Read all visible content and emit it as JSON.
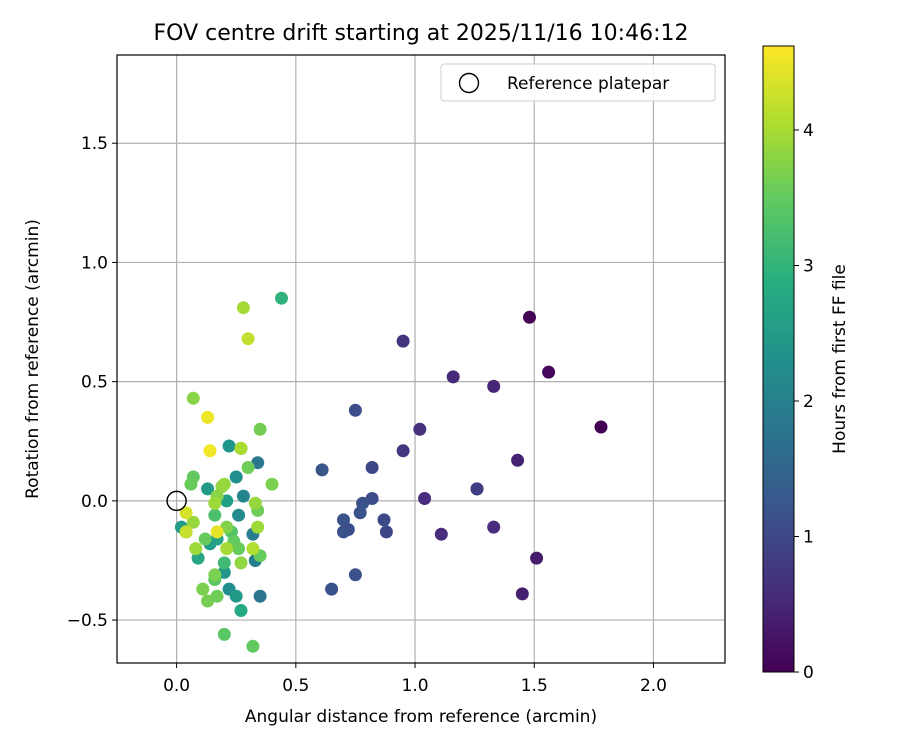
{
  "chart_data": {
    "type": "scatter",
    "title": "FOV centre drift starting at 2025/11/16 10:46:12",
    "xlabel": "Angular distance from reference (arcmin)",
    "ylabel": "Rotation from reference (arcmin)",
    "xlim": [
      -0.25,
      2.3
    ],
    "ylim": [
      -0.68,
      1.87
    ],
    "xticks": [
      0.0,
      0.5,
      1.0,
      1.5,
      2.0
    ],
    "xtick_labels": [
      "0.0",
      "0.5",
      "1.0",
      "1.5",
      "2.0"
    ],
    "yticks": [
      -0.5,
      0.0,
      0.5,
      1.0,
      1.5
    ],
    "ytick_labels": [
      "−0.5",
      "0.0",
      "0.5",
      "1.0",
      "1.5"
    ],
    "grid": true,
    "legend": {
      "location": "top-right",
      "label": "Reference platepar"
    },
    "reference_point": {
      "x": 0.0,
      "y": 0.0
    },
    "colorbar": {
      "label": "Hours from first FF file",
      "min": 0,
      "max": 4.62,
      "colormap": "viridis",
      "ticks": [
        0,
        1,
        2,
        3,
        4
      ],
      "tick_labels": [
        "0",
        "1",
        "2",
        "3",
        "4"
      ]
    },
    "points": [
      {
        "x": 1.78,
        "y": 0.31,
        "t": 0.02
      },
      {
        "x": 1.48,
        "y": 0.77,
        "t": 0.05
      },
      {
        "x": 1.56,
        "y": 0.54,
        "t": 0.1
      },
      {
        "x": 1.51,
        "y": -0.24,
        "t": 0.35
      },
      {
        "x": 1.45,
        "y": -0.39,
        "t": 0.4
      },
      {
        "x": 1.43,
        "y": 0.17,
        "t": 0.45
      },
      {
        "x": 1.33,
        "y": 0.48,
        "t": 0.5
      },
      {
        "x": 1.33,
        "y": -0.11,
        "t": 0.6
      },
      {
        "x": 1.16,
        "y": 0.52,
        "t": 0.55
      },
      {
        "x": 1.11,
        "y": -0.14,
        "t": 0.6
      },
      {
        "x": 1.04,
        "y": 0.01,
        "t": 0.6
      },
      {
        "x": 1.02,
        "y": 0.3,
        "t": 0.65
      },
      {
        "x": 0.95,
        "y": 0.67,
        "t": 0.7
      },
      {
        "x": 0.95,
        "y": 0.21,
        "t": 0.75
      },
      {
        "x": 1.26,
        "y": 0.05,
        "t": 0.8
      },
      {
        "x": 1.26,
        "y": 0.05,
        "t": 0.85
      },
      {
        "x": 0.88,
        "y": -0.13,
        "t": 1.0
      },
      {
        "x": 0.87,
        "y": -0.08,
        "t": 1.05
      },
      {
        "x": 0.82,
        "y": 0.14,
        "t": 1.0
      },
      {
        "x": 0.82,
        "y": 0.01,
        "t": 1.1
      },
      {
        "x": 0.78,
        "y": -0.01,
        "t": 1.15
      },
      {
        "x": 0.77,
        "y": -0.05,
        "t": 1.2
      },
      {
        "x": 0.75,
        "y": 0.38,
        "t": 1.1
      },
      {
        "x": 0.75,
        "y": -0.31,
        "t": 1.15
      },
      {
        "x": 0.72,
        "y": -0.12,
        "t": 1.1
      },
      {
        "x": 0.7,
        "y": -0.08,
        "t": 1.2
      },
      {
        "x": 0.7,
        "y": -0.13,
        "t": 1.15
      },
      {
        "x": 0.65,
        "y": -0.37,
        "t": 1.2
      },
      {
        "x": 0.61,
        "y": 0.13,
        "t": 1.25
      },
      {
        "x": 0.35,
        "y": -0.4,
        "t": 1.8
      },
      {
        "x": 0.34,
        "y": 0.16,
        "t": 1.85
      },
      {
        "x": 0.32,
        "y": -0.14,
        "t": 1.95
      },
      {
        "x": 0.33,
        "y": -0.25,
        "t": 2.0
      },
      {
        "x": 0.28,
        "y": 0.02,
        "t": 2.1
      },
      {
        "x": 0.26,
        "y": -0.06,
        "t": 2.2
      },
      {
        "x": 0.25,
        "y": 0.1,
        "t": 2.3
      },
      {
        "x": 0.22,
        "y": 0.23,
        "t": 2.4
      },
      {
        "x": 0.22,
        "y": -0.37,
        "t": 2.3
      },
      {
        "x": 0.25,
        "y": -0.4,
        "t": 2.5
      },
      {
        "x": 0.2,
        "y": -0.3,
        "t": 2.45
      },
      {
        "x": 0.21,
        "y": 0.0,
        "t": 2.6
      },
      {
        "x": 0.27,
        "y": -0.46,
        "t": 2.8
      },
      {
        "x": 0.17,
        "y": -0.16,
        "t": 2.7
      },
      {
        "x": 0.13,
        "y": 0.05,
        "t": 2.5
      },
      {
        "x": 0.14,
        "y": -0.18,
        "t": 2.55
      },
      {
        "x": 0.04,
        "y": -0.13,
        "t": 2.6
      },
      {
        "x": 0.02,
        "y": -0.11,
        "t": 2.55
      },
      {
        "x": 0.09,
        "y": -0.24,
        "t": 2.75
      },
      {
        "x": 0.44,
        "y": 0.85,
        "t": 3.0
      },
      {
        "x": 0.27,
        "y": 0.22,
        "t": 3.1
      },
      {
        "x": 0.2,
        "y": -0.26,
        "t": 3.15
      },
      {
        "x": 0.16,
        "y": -0.06,
        "t": 3.3
      },
      {
        "x": 0.16,
        "y": -0.33,
        "t": 3.45
      },
      {
        "x": 0.2,
        "y": -0.56,
        "t": 3.45
      },
      {
        "x": 0.32,
        "y": -0.61,
        "t": 3.5
      },
      {
        "x": 0.23,
        "y": -0.13,
        "t": 3.35
      },
      {
        "x": 0.24,
        "y": -0.17,
        "t": 3.5
      },
      {
        "x": 0.26,
        "y": -0.2,
        "t": 3.55
      },
      {
        "x": 0.3,
        "y": 0.14,
        "t": 3.6
      },
      {
        "x": 0.34,
        "y": -0.04,
        "t": 3.6
      },
      {
        "x": 0.35,
        "y": -0.23,
        "t": 3.55
      },
      {
        "x": 0.35,
        "y": 0.3,
        "t": 3.65
      },
      {
        "x": 0.4,
        "y": 0.07,
        "t": 3.7
      },
      {
        "x": 0.07,
        "y": 0.1,
        "t": 3.5
      },
      {
        "x": 0.06,
        "y": 0.07,
        "t": 3.55
      },
      {
        "x": 0.07,
        "y": 0.43,
        "t": 3.8
      },
      {
        "x": 0.12,
        "y": -0.16,
        "t": 3.55
      },
      {
        "x": 0.13,
        "y": -0.42,
        "t": 3.65
      },
      {
        "x": 0.11,
        "y": -0.37,
        "t": 3.7
      },
      {
        "x": 0.17,
        "y": -0.4,
        "t": 3.6
      },
      {
        "x": 0.16,
        "y": -0.31,
        "t": 3.7
      },
      {
        "x": 0.17,
        "y": 0.02,
        "t": 3.8
      },
      {
        "x": 0.19,
        "y": 0.06,
        "t": 3.85
      },
      {
        "x": 0.2,
        "y": 0.07,
        "t": 3.9
      },
      {
        "x": 0.16,
        "y": -0.01,
        "t": 3.95
      },
      {
        "x": 0.07,
        "y": -0.09,
        "t": 3.9
      },
      {
        "x": 0.08,
        "y": -0.2,
        "t": 3.95
      },
      {
        "x": 0.21,
        "y": -0.11,
        "t": 3.75
      },
      {
        "x": 0.21,
        "y": -0.2,
        "t": 4.0
      },
      {
        "x": 0.27,
        "y": -0.26,
        "t": 3.85
      },
      {
        "x": 0.33,
        "y": -0.01,
        "t": 3.9
      },
      {
        "x": 0.32,
        "y": -0.2,
        "t": 4.1
      },
      {
        "x": 0.34,
        "y": -0.11,
        "t": 3.95
      },
      {
        "x": 0.28,
        "y": 0.81,
        "t": 4.0
      },
      {
        "x": 0.3,
        "y": 0.68,
        "t": 4.2
      },
      {
        "x": 0.27,
        "y": 0.22,
        "t": 4.05
      },
      {
        "x": 0.04,
        "y": -0.13,
        "t": 4.25
      },
      {
        "x": 0.04,
        "y": -0.05,
        "t": 4.35
      },
      {
        "x": 0.17,
        "y": -0.13,
        "t": 4.45
      },
      {
        "x": 0.13,
        "y": 0.35,
        "t": 4.5
      },
      {
        "x": 0.14,
        "y": 0.21,
        "t": 4.55
      }
    ]
  }
}
